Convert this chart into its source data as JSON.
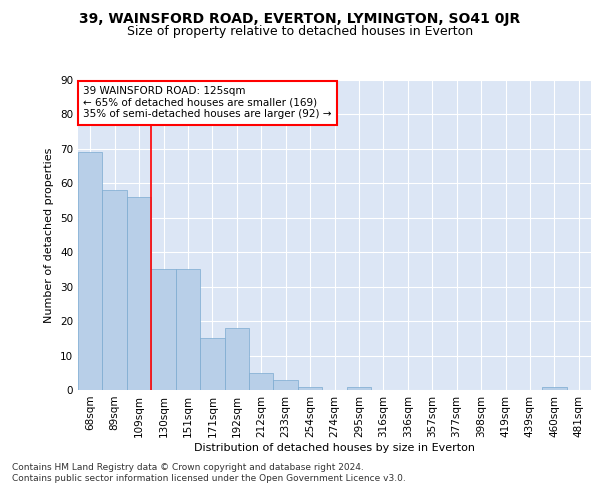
{
  "title_main": "39, WAINSFORD ROAD, EVERTON, LYMINGTON, SO41 0JR",
  "title_sub": "Size of property relative to detached houses in Everton",
  "xlabel": "Distribution of detached houses by size in Everton",
  "ylabel": "Number of detached properties",
  "bar_labels": [
    "68sqm",
    "89sqm",
    "109sqm",
    "130sqm",
    "151sqm",
    "171sqm",
    "192sqm",
    "212sqm",
    "233sqm",
    "254sqm",
    "274sqm",
    "295sqm",
    "316sqm",
    "336sqm",
    "357sqm",
    "377sqm",
    "398sqm",
    "419sqm",
    "439sqm",
    "460sqm",
    "481sqm"
  ],
  "bar_values": [
    69,
    58,
    56,
    35,
    35,
    15,
    18,
    5,
    3,
    1,
    0,
    1,
    0,
    0,
    0,
    0,
    0,
    0,
    0,
    1,
    0
  ],
  "bar_color": "#b8cfe8",
  "bar_edge_color": "#7aaad0",
  "vline_x": 2.5,
  "vline_color": "red",
  "annotation_text": "39 WAINSFORD ROAD: 125sqm\n← 65% of detached houses are smaller (169)\n35% of semi-detached houses are larger (92) →",
  "annotation_box_color": "white",
  "annotation_box_edge": "red",
  "ylim": [
    0,
    90
  ],
  "yticks": [
    0,
    10,
    20,
    30,
    40,
    50,
    60,
    70,
    80,
    90
  ],
  "plot_background": "#dce6f5",
  "footer_line1": "Contains HM Land Registry data © Crown copyright and database right 2024.",
  "footer_line2": "Contains public sector information licensed under the Open Government Licence v3.0.",
  "title_main_fontsize": 10,
  "title_sub_fontsize": 9,
  "axis_label_fontsize": 8,
  "tick_fontsize": 7.5,
  "annotation_fontsize": 7.5,
  "footer_fontsize": 6.5
}
